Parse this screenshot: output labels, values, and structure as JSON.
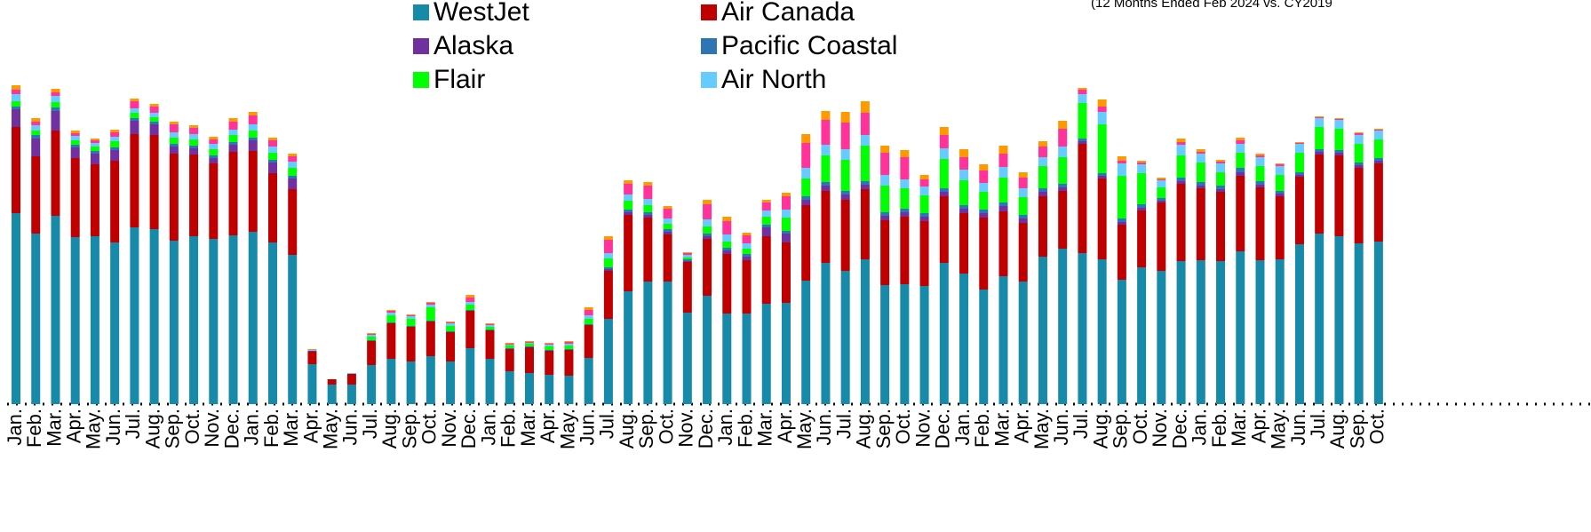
{
  "chart_data": {
    "type": "stacked_bar",
    "subtitle": "(12 Months Ended Feb 2024 vs. CY2019",
    "categories": [
      "Jan.",
      "Feb.",
      "Mar.",
      "Apr.",
      "May.",
      "Jun.",
      "Jul.",
      "Aug.",
      "Sep.",
      "Oct.",
      "Nov.",
      "Dec.",
      "Jan.",
      "Feb.",
      "Mar.",
      "Apr.",
      "May.",
      "Jun.",
      "Jul.",
      "Aug.",
      "Sep.",
      "Oct.",
      "Nov.",
      "Dec.",
      "Jan.",
      "Feb.",
      "Mar.",
      "Apr.",
      "May.",
      "Jun.",
      "Jul.",
      "Aug.",
      "Sep.",
      "Oct.",
      "Nov.",
      "Dec.",
      "Jan.",
      "Feb.",
      "Mar.",
      "Apr.",
      "May.",
      "Jun.",
      "Jul.",
      "Aug.",
      "Sep.",
      "Oct.",
      "Nov.",
      "Dec.",
      "Jan.",
      "Feb.",
      "Mar.",
      "Apr.",
      "May.",
      "Jun.",
      "Jul.",
      "Aug.",
      "Sep.",
      "Oct.",
      "Nov.",
      "Dec.",
      "Jan.",
      "Feb.",
      "Mar.",
      "Apr.",
      "May.",
      "Jun.",
      "Jul.",
      "Aug.",
      "Sep.",
      "Oct."
    ],
    "ylim": [
      0,
      370
    ],
    "series": [
      {
        "name": "WestJet",
        "color": "#168aa8",
        "values": [
          215,
          192,
          212,
          188,
          189,
          182,
          199,
          197,
          184,
          189,
          186,
          190,
          194,
          182,
          168,
          45,
          22,
          22,
          44,
          51,
          48,
          54,
          48,
          63,
          51,
          37,
          35,
          33,
          32,
          52,
          96,
          127,
          138,
          138,
          103,
          122,
          102,
          102,
          113,
          114,
          139,
          159,
          150,
          163,
          134,
          135,
          133,
          159,
          147,
          129,
          144,
          138,
          166,
          175,
          170,
          163,
          140,
          154,
          150,
          161,
          162,
          161,
          172,
          162,
          163,
          180,
          192,
          189,
          181,
          183
        ]
      },
      {
        "name": "Air Canada",
        "color": "#c00000",
        "values": [
          97,
          87,
          96,
          89,
          81,
          92,
          105,
          106,
          98,
          92,
          85,
          94,
          91,
          78,
          74,
          14,
          6,
          12,
          27,
          40,
          39,
          39,
          33,
          42,
          32,
          25,
          29,
          27,
          29,
          37,
          54,
          86,
          72,
          53,
          57,
          64,
          67,
          60,
          76,
          68,
          85,
          81,
          80,
          79,
          73,
          76,
          73,
          75,
          68,
          81,
          73,
          66,
          68,
          65,
          123,
          91,
          62,
          64,
          77,
          87,
          81,
          78,
          85,
          82,
          71,
          76,
          89,
          91,
          85,
          88
        ]
      },
      {
        "name": "Alaska",
        "color": "#7030a0",
        "values": [
          20,
          20,
          22,
          12,
          12,
          12,
          15,
          12,
          8,
          7,
          6,
          8,
          12,
          12,
          12,
          1,
          0,
          0,
          0,
          0,
          0,
          0,
          0,
          0,
          0,
          0,
          0,
          0,
          0,
          0,
          2,
          3,
          3,
          3,
          1,
          3,
          4,
          4,
          10,
          10,
          6,
          6,
          6,
          5,
          5,
          5,
          5,
          5,
          5,
          5,
          6,
          5,
          5,
          4,
          3,
          3,
          3,
          3,
          2,
          3,
          3,
          3,
          4,
          3,
          3,
          2,
          3,
          3,
          3,
          3
        ]
      },
      {
        "name": "Pacific Coastal",
        "color": "#2e75b6",
        "values": [
          3,
          4,
          4,
          3,
          3,
          3,
          3,
          3,
          3,
          3,
          3,
          3,
          3,
          3,
          3,
          0,
          0,
          0,
          1,
          1,
          1,
          1,
          1,
          1,
          1,
          1,
          1,
          1,
          1,
          1,
          2,
          3,
          3,
          3,
          2,
          3,
          3,
          3,
          3,
          3,
          4,
          4,
          4,
          4,
          4,
          4,
          4,
          4,
          4,
          4,
          4,
          4,
          4,
          4,
          3,
          3,
          4,
          4,
          3,
          4,
          4,
          4,
          5,
          4,
          3,
          3,
          3,
          3,
          3,
          3
        ]
      },
      {
        "name": "Flair",
        "color": "#00ff00",
        "values": [
          6,
          5,
          6,
          5,
          5,
          7,
          6,
          5,
          7,
          7,
          7,
          8,
          8,
          8,
          9,
          0,
          0,
          0,
          4,
          8,
          8,
          15,
          6,
          6,
          3,
          3,
          3,
          4,
          4,
          6,
          10,
          10,
          8,
          6,
          2,
          8,
          7,
          6,
          9,
          15,
          20,
          30,
          35,
          40,
          30,
          23,
          20,
          33,
          28,
          20,
          28,
          20,
          25,
          30,
          40,
          55,
          48,
          35,
          12,
          25,
          22,
          15,
          17,
          17,
          18,
          22,
          25,
          24,
          21,
          21
        ]
      },
      {
        "name": "Air North",
        "color": "#66ccff",
        "values": [
          8,
          6,
          7,
          5,
          4,
          5,
          5,
          5,
          6,
          6,
          6,
          6,
          7,
          7,
          7,
          1,
          0,
          1,
          2,
          3,
          3,
          3,
          3,
          3,
          2,
          1,
          1,
          2,
          2,
          4,
          6,
          7,
          7,
          6,
          3,
          8,
          8,
          6,
          7,
          9,
          12,
          12,
          12,
          12,
          12,
          10,
          10,
          12,
          12,
          10,
          12,
          10,
          10,
          12,
          10,
          14,
          14,
          10,
          8,
          12,
          10,
          10,
          10,
          10,
          10,
          10,
          10,
          10,
          10,
          10
        ]
      },
      {
        "color": "#ff3399",
        "values": [
          5,
          4,
          4,
          3,
          3,
          5,
          8,
          7,
          9,
          7,
          5,
          9,
          10,
          7,
          6,
          0,
          0,
          0,
          1,
          2,
          1,
          2,
          1,
          5,
          1,
          1,
          1,
          1,
          2,
          6,
          15,
          12,
          15,
          11,
          2,
          17,
          15,
          9,
          9,
          15,
          28,
          28,
          30,
          25,
          25,
          25,
          8,
          15,
          14,
          14,
          15,
          12,
          12,
          20,
          5,
          6,
          3,
          2,
          1,
          3,
          2,
          2,
          4,
          2,
          2,
          1,
          1,
          1,
          2,
          1
        ]
      },
      {
        "color": "#ff9900",
        "values": [
          5,
          4,
          4,
          3,
          2,
          3,
          3,
          3,
          3,
          3,
          3,
          4,
          4,
          3,
          3,
          1,
          0,
          0,
          1,
          1,
          1,
          1,
          1,
          3,
          1,
          1,
          1,
          1,
          1,
          3,
          4,
          4,
          4,
          3,
          1,
          5,
          5,
          3,
          3,
          4,
          10,
          10,
          12,
          13,
          8,
          8,
          5,
          9,
          9,
          7,
          9,
          6,
          6,
          9,
          2,
          8,
          5,
          2,
          2,
          4,
          3,
          2,
          3,
          2,
          1,
          1,
          1,
          1,
          1,
          1
        ]
      }
    ]
  }
}
